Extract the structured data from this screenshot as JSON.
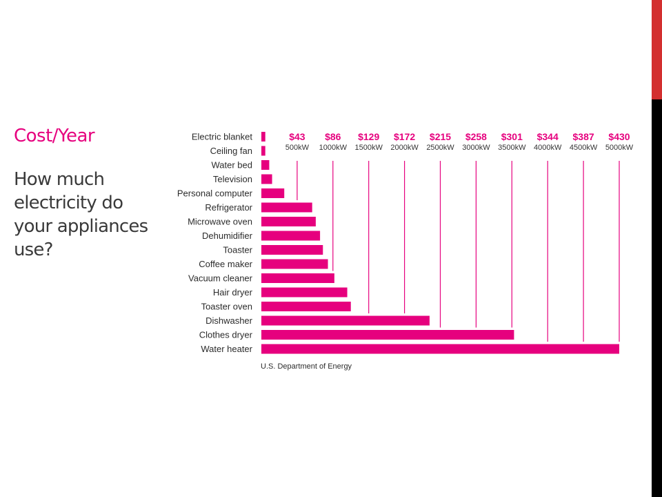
{
  "slide": {
    "title": "Cost/Year",
    "body": "How much electricity do your appliances use?"
  },
  "colors": {
    "accent": "#e6007e",
    "edge_top": "#d32f2f",
    "edge_bottom": "#000000"
  },
  "chart_data": {
    "type": "bar",
    "orientation": "horizontal",
    "categories": [
      "Electric blanket",
      "Ceiling fan",
      "Water bed",
      "Television",
      "Personal computer",
      "Refrigerator",
      "Microwave oven",
      "Dehumidifier",
      "Toaster",
      "Coffee maker",
      "Vacuum cleaner",
      "Hair dryer",
      "Toaster oven",
      "Dishwasher",
      "Clothes dryer",
      "Water heater"
    ],
    "values": [
      55,
      55,
      110,
      150,
      320,
      710,
      760,
      820,
      860,
      930,
      1020,
      1200,
      1250,
      2350,
      3530,
      5000
    ],
    "xlim": [
      0,
      5000
    ],
    "ticks": [
      {
        "value": 500,
        "cost": "$43",
        "kw": "500kW"
      },
      {
        "value": 1000,
        "cost": "$86",
        "kw": "1000kW"
      },
      {
        "value": 1500,
        "cost": "$129",
        "kw": "1500kW"
      },
      {
        "value": 2000,
        "cost": "$172",
        "kw": "2000kW"
      },
      {
        "value": 2500,
        "cost": "$215",
        "kw": "2500kW"
      },
      {
        "value": 3000,
        "cost": "$258",
        "kw": "3000kW"
      },
      {
        "value": 3500,
        "cost": "$301",
        "kw": "3500kW"
      },
      {
        "value": 4000,
        "cost": "$344",
        "kw": "4000kW"
      },
      {
        "value": 4500,
        "cost": "$387",
        "kw": "4500kW"
      },
      {
        "value": 5000,
        "cost": "$430",
        "kw": "5000kW"
      }
    ],
    "source": "U.S. Department of Energy",
    "grid": true
  }
}
